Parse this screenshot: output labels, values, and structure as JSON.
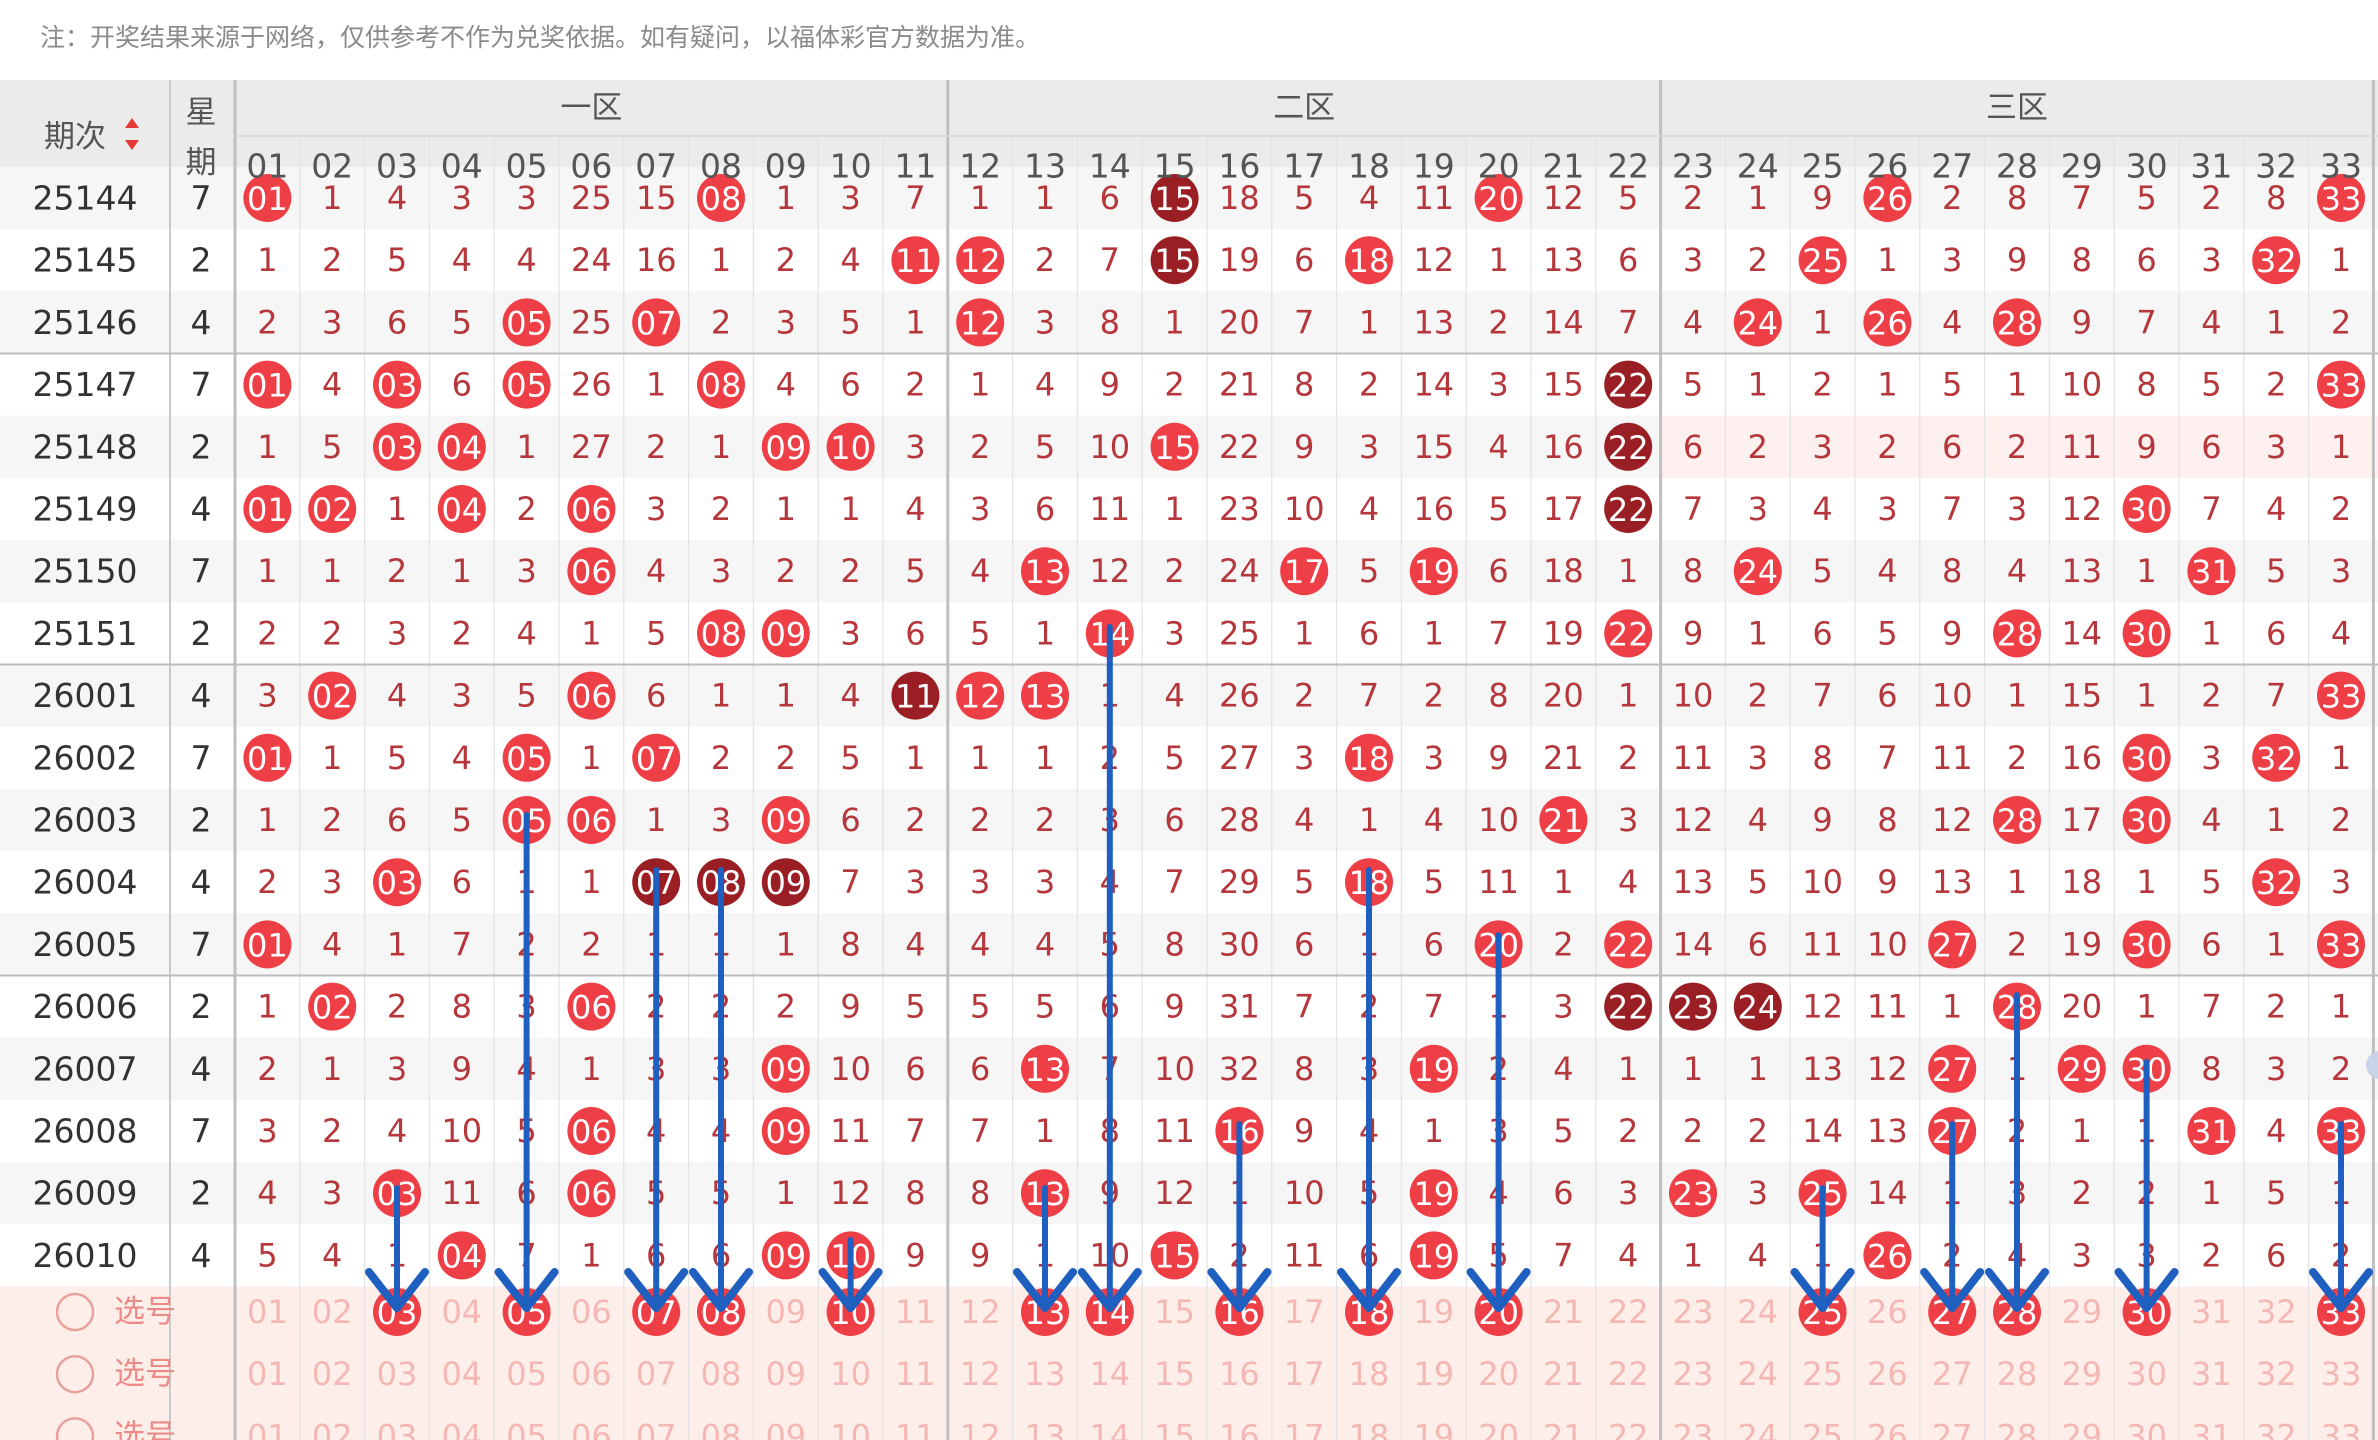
{
  "note": "注：开奖结果来源于网络，仅供参考不作为兑奖依据。如有疑问，以福体彩官方数据为准。",
  "header": {
    "period_label": "期次",
    "weekday_label": "星期",
    "zones": [
      "一区",
      "二区",
      "三区"
    ],
    "numbers": [
      "01",
      "02",
      "03",
      "04",
      "05",
      "06",
      "07",
      "08",
      "09",
      "10",
      "11",
      "12",
      "13",
      "14",
      "15",
      "16",
      "17",
      "18",
      "19",
      "20",
      "21",
      "22",
      "23",
      "24",
      "25",
      "26",
      "27",
      "28",
      "29",
      "30",
      "31",
      "32",
      "33"
    ]
  },
  "rows": [
    {
      "issue": "25144",
      "weekday": "7",
      "cells": [
        -1,
        1,
        4,
        3,
        3,
        25,
        15,
        -8,
        1,
        3,
        7,
        1,
        1,
        6,
        -15,
        18,
        5,
        4,
        11,
        -20,
        12,
        5,
        2,
        1,
        9,
        -26,
        2,
        8,
        7,
        5,
        2,
        8,
        -33
      ]
    },
    {
      "issue": "25145",
      "weekday": "2",
      "cells": [
        1,
        2,
        5,
        4,
        4,
        24,
        16,
        1,
        2,
        4,
        -11,
        -12,
        2,
        7,
        -15,
        19,
        6,
        -18,
        12,
        1,
        13,
        6,
        3,
        2,
        -25,
        1,
        3,
        9,
        8,
        6,
        3,
        -32,
        1
      ]
    },
    {
      "issue": "25146",
      "weekday": "4",
      "cells": [
        2,
        3,
        6,
        5,
        -5,
        25,
        -7,
        2,
        3,
        5,
        1,
        -12,
        3,
        8,
        1,
        20,
        7,
        1,
        13,
        2,
        14,
        7,
        4,
        -24,
        1,
        -26,
        4,
        -28,
        9,
        7,
        4,
        1,
        2
      ]
    },
    {
      "issue": "25147",
      "weekday": "7",
      "cells": [
        -1,
        4,
        -3,
        6,
        -5,
        26,
        1,
        -8,
        4,
        6,
        2,
        1,
        4,
        9,
        2,
        21,
        8,
        2,
        14,
        3,
        15,
        -22,
        5,
        1,
        2,
        1,
        5,
        1,
        10,
        8,
        5,
        2,
        -33
      ]
    },
    {
      "issue": "25148",
      "weekday": "2",
      "cells": [
        1,
        5,
        -3,
        -4,
        1,
        27,
        2,
        1,
        -9,
        -10,
        3,
        2,
        5,
        10,
        -15,
        22,
        9,
        3,
        15,
        4,
        16,
        -22,
        6,
        2,
        3,
        2,
        6,
        2,
        11,
        9,
        6,
        3,
        1
      ]
    },
    {
      "issue": "25149",
      "weekday": "4",
      "cells": [
        -1,
        -2,
        1,
        -4,
        2,
        -6,
        3,
        2,
        1,
        1,
        4,
        3,
        6,
        11,
        1,
        23,
        10,
        4,
        16,
        5,
        17,
        -22,
        7,
        3,
        4,
        3,
        7,
        3,
        12,
        -30,
        7,
        4,
        2
      ]
    },
    {
      "issue": "25150",
      "weekday": "7",
      "cells": [
        1,
        1,
        2,
        1,
        3,
        -6,
        4,
        3,
        2,
        2,
        5,
        4,
        -13,
        12,
        2,
        24,
        -17,
        5,
        -19,
        6,
        18,
        1,
        8,
        -24,
        5,
        4,
        8,
        4,
        13,
        1,
        -31,
        5,
        3
      ]
    },
    {
      "issue": "25151",
      "weekday": "2",
      "cells": [
        2,
        2,
        3,
        2,
        4,
        1,
        5,
        -8,
        -9,
        3,
        6,
        5,
        1,
        -14,
        3,
        25,
        1,
        6,
        1,
        7,
        19,
        -22,
        9,
        1,
        6,
        5,
        9,
        -28,
        14,
        -30,
        1,
        6,
        4
      ]
    },
    {
      "issue": "26001",
      "weekday": "4",
      "cells": [
        3,
        -2,
        4,
        3,
        5,
        -6,
        6,
        1,
        1,
        4,
        -11,
        -12,
        -13,
        1,
        4,
        26,
        2,
        7,
        2,
        8,
        20,
        1,
        10,
        2,
        7,
        6,
        10,
        1,
        15,
        1,
        2,
        7,
        -33
      ]
    },
    {
      "issue": "26002",
      "weekday": "7",
      "cells": [
        -1,
        1,
        5,
        4,
        -5,
        1,
        -7,
        2,
        2,
        5,
        1,
        1,
        1,
        2,
        5,
        27,
        3,
        -18,
        3,
        9,
        21,
        2,
        11,
        3,
        8,
        7,
        11,
        2,
        16,
        -30,
        3,
        -32,
        1
      ]
    },
    {
      "issue": "26003",
      "weekday": "2",
      "cells": [
        1,
        2,
        6,
        5,
        -5,
        -6,
        1,
        3,
        -9,
        6,
        2,
        2,
        2,
        3,
        6,
        28,
        4,
        1,
        4,
        10,
        -21,
        3,
        12,
        4,
        9,
        8,
        12,
        -28,
        17,
        -30,
        4,
        1,
        2
      ]
    },
    {
      "issue": "26004",
      "weekday": "4",
      "cells": [
        2,
        3,
        -3,
        6,
        1,
        1,
        -7,
        -8,
        -9,
        7,
        3,
        3,
        3,
        4,
        7,
        29,
        5,
        -18,
        5,
        11,
        1,
        4,
        13,
        5,
        10,
        9,
        13,
        1,
        18,
        1,
        5,
        -32,
        3
      ]
    },
    {
      "issue": "26005",
      "weekday": "7",
      "cells": [
        -1,
        4,
        1,
        7,
        2,
        2,
        1,
        1,
        1,
        8,
        4,
        4,
        4,
        5,
        8,
        30,
        6,
        1,
        6,
        -20,
        2,
        -22,
        14,
        6,
        11,
        10,
        -27,
        2,
        19,
        -30,
        6,
        1,
        -33
      ]
    },
    {
      "issue": "26006",
      "weekday": "2",
      "cells": [
        1,
        -2,
        2,
        8,
        3,
        -6,
        2,
        2,
        2,
        9,
        5,
        5,
        5,
        6,
        9,
        31,
        7,
        2,
        7,
        1,
        3,
        -22,
        -23,
        -24,
        12,
        11,
        1,
        -28,
        20,
        1,
        7,
        2,
        1
      ]
    },
    {
      "issue": "26007",
      "weekday": "4",
      "cells": [
        2,
        1,
        3,
        9,
        4,
        1,
        3,
        3,
        -9,
        10,
        6,
        6,
        -13,
        7,
        10,
        32,
        8,
        3,
        -19,
        2,
        4,
        1,
        1,
        1,
        13,
        12,
        -27,
        1,
        -29,
        -30,
        8,
        3,
        2
      ]
    },
    {
      "issue": "26008",
      "weekday": "7",
      "cells": [
        3,
        2,
        4,
        10,
        5,
        -6,
        4,
        4,
        -9,
        11,
        7,
        7,
        1,
        8,
        11,
        -16,
        9,
        4,
        1,
        3,
        5,
        2,
        2,
        2,
        14,
        13,
        -27,
        2,
        1,
        1,
        -31,
        4,
        -33
      ]
    },
    {
      "issue": "26009",
      "weekday": "2",
      "cells": [
        4,
        3,
        -3,
        11,
        6,
        -6,
        5,
        5,
        1,
        12,
        8,
        8,
        -13,
        9,
        12,
        1,
        10,
        5,
        -19,
        4,
        6,
        3,
        -23,
        3,
        -25,
        14,
        1,
        3,
        2,
        2,
        1,
        5,
        1
      ]
    },
    {
      "issue": "26010",
      "weekday": "4",
      "cells": [
        5,
        4,
        1,
        -4,
        7,
        1,
        6,
        6,
        -9,
        -10,
        9,
        9,
        1,
        10,
        -15,
        2,
        11,
        6,
        -19,
        5,
        7,
        4,
        1,
        4,
        1,
        -26,
        2,
        4,
        3,
        3,
        2,
        6,
        2
      ]
    }
  ],
  "pick_rows": [
    {
      "label": "选号",
      "selected": [
        3,
        5,
        7,
        8,
        10,
        13,
        14,
        16,
        18,
        20,
        25,
        27,
        28,
        30,
        33
      ]
    },
    {
      "label": "选号",
      "selected": []
    },
    {
      "label": "选号",
      "selected": []
    }
  ],
  "dark_hits": [
    "0:14",
    "1:14",
    "3:21",
    "4:21",
    "5:21",
    "11:6",
    "11:7",
    "11:8",
    "8:10",
    "13:21",
    "13:22",
    "13:23"
  ],
  "arrows": [
    {
      "col": 5,
      "to": "03"
    },
    {
      "col": 8,
      "to": "05"
    },
    {
      "col": 10,
      "to": "07"
    },
    {
      "col": 11,
      "to": "08"
    },
    {
      "col": 13,
      "to": "10"
    },
    {
      "col": 16,
      "to": "13"
    },
    {
      "col": 17,
      "to": "14"
    },
    {
      "col": 19,
      "to": "16"
    },
    {
      "col": 21,
      "to": "18"
    },
    {
      "col": 23,
      "to": "20"
    },
    {
      "col": 28,
      "to": "25"
    },
    {
      "col": 30,
      "to": "27"
    },
    {
      "col": 31,
      "to": "28"
    },
    {
      "col": 33,
      "to": "30"
    },
    {
      "col": 36,
      "to": "33"
    }
  ],
  "colors": {
    "red_ball": "#ee3e46",
    "dark_ball": "#9a1f24",
    "miss_text": "#b5363b",
    "header_text": "#555555",
    "arrow": "#1e5fbf",
    "pick_bg": "#fdeee9",
    "pick_text": "#f5b7b3",
    "zone_divider": "#bfbfbf"
  }
}
